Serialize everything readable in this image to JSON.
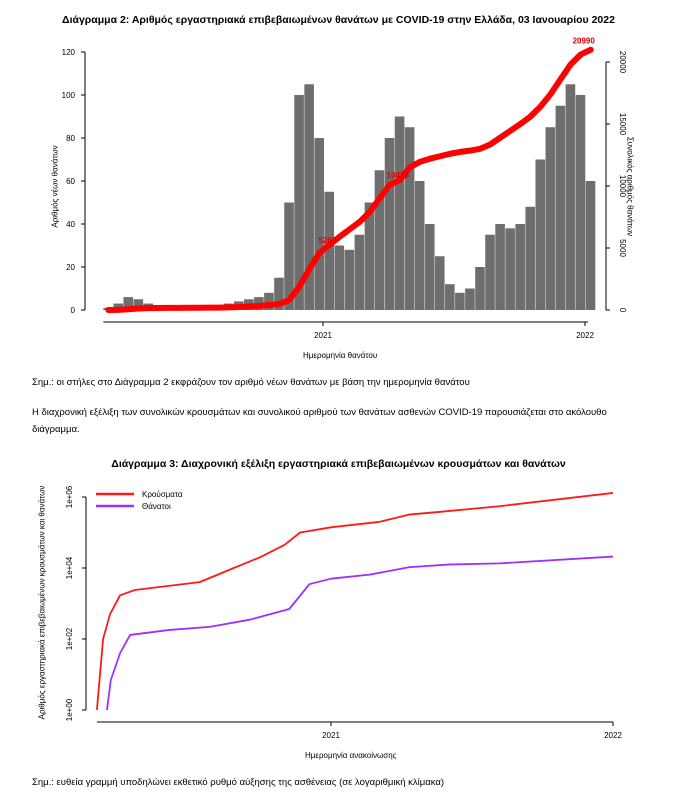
{
  "chart_data": [
    {
      "type": "bar",
      "title": "Διάγραμμα 2: Αριθμός εργαστηριακά επιβεβαιωμένων θανάτων με COVID-19 στην Ελλάδα, 03 Ιανουαρίου 2022",
      "xlabel": "Ημερομηνία θανάτου",
      "ylabel": "Αριθμός νέων θανάτων",
      "ylabel_right": "Συνολικός αριθμός θανάτων",
      "x_tick_labels": [
        "2021",
        "2022"
      ],
      "y_ticks": [
        0,
        20,
        40,
        60,
        80,
        100,
        120
      ],
      "y_ticks_right": [
        0,
        5000,
        10000,
        15000,
        20000
      ],
      "ylim": [
        0,
        125
      ],
      "ylim_right": [
        0,
        20800
      ],
      "bar_color": "#6e6e6e",
      "line_color": "#ff0000",
      "x": [
        "2020-03-01",
        "2020-03-15",
        "2020-03-29",
        "2020-04-12",
        "2020-04-26",
        "2020-05-10",
        "2020-05-24",
        "2020-06-07",
        "2020-06-21",
        "2020-07-05",
        "2020-07-19",
        "2020-08-02",
        "2020-08-16",
        "2020-08-30",
        "2020-09-13",
        "2020-09-27",
        "2020-10-11",
        "2020-10-25",
        "2020-11-08",
        "2020-11-22",
        "2020-12-06",
        "2020-12-20",
        "2021-01-03",
        "2021-01-17",
        "2021-01-31",
        "2021-02-14",
        "2021-02-28",
        "2021-03-14",
        "2021-03-28",
        "2021-04-11",
        "2021-04-25",
        "2021-05-09",
        "2021-05-23",
        "2021-06-06",
        "2021-06-20",
        "2021-07-04",
        "2021-07-18",
        "2021-08-01",
        "2021-08-15",
        "2021-08-29",
        "2021-09-12",
        "2021-09-26",
        "2021-10-10",
        "2021-10-24",
        "2021-11-07",
        "2021-11-21",
        "2021-12-05",
        "2021-12-19",
        "2022-01-02"
      ],
      "series": [
        {
          "type": "bar",
          "axis": "left",
          "values": [
            1,
            3,
            6,
            5,
            3,
            2,
            1,
            1,
            1,
            1,
            1,
            2,
            3,
            4,
            5,
            6,
            8,
            15,
            50,
            100,
            105,
            80,
            55,
            30,
            28,
            35,
            50,
            65,
            80,
            90,
            85,
            60,
            40,
            25,
            12,
            8,
            10,
            20,
            35,
            40,
            38,
            40,
            48,
            70,
            85,
            95,
            105,
            100,
            60
          ]
        },
        {
          "type": "line",
          "axis": "right",
          "values": [
            0,
            10,
            60,
            120,
            150,
            165,
            172,
            176,
            180,
            184,
            188,
            195,
            210,
            240,
            280,
            330,
            400,
            480,
            800,
            1900,
            3300,
            4600,
            5260,
            5900,
            6500,
            7100,
            7900,
            9000,
            10100,
            10476,
            11500,
            11950,
            12200,
            12400,
            12600,
            12750,
            12850,
            13000,
            13350,
            13900,
            14450,
            15000,
            15600,
            16400,
            17400,
            18600,
            19800,
            20600,
            20990
          ]
        }
      ],
      "annotations": [
        "5260",
        "10476",
        "20990"
      ]
    },
    {
      "type": "line",
      "title": "Διάγραμμα 3: Διαχρονική εξέλιξη εργαστηριακά επιβεβαιωμένων κρουσμάτων και θανάτων",
      "xlabel": "Ημερομηνία ανακοίνωσης",
      "ylabel": "Αριθμός εργαστηριακά επιβεβαιωμένων κρουσμάτων και θανάτων",
      "y_scale": "log",
      "y_tick_labels": [
        "1e+00",
        "1e+02",
        "1e+04",
        "1e+06"
      ],
      "x_tick_labels": [
        "2021",
        "2022"
      ],
      "legend_position": "top-left",
      "series": [
        {
          "name": "Κρούσματα",
          "color": "#ff1a1a",
          "x": [
            "2020-03-04",
            "2020-03-12",
            "2020-03-21",
            "2020-04-03",
            "2020-04-22",
            "2020-07-15",
            "2020-08-23",
            "2020-10-01",
            "2020-11-02",
            "2020-11-22",
            "2021-01-01",
            "2021-03-05",
            "2021-04-12",
            "2021-05-21",
            "2021-08-07",
            "2022-01-01"
          ],
          "y": [
            1,
            100,
            500,
            1700,
            2400,
            4000,
            9000,
            20000,
            45000,
            100000,
            140000,
            200000,
            320000,
            380000,
            550000,
            1300000
          ]
        },
        {
          "name": "Θάνατοι",
          "color": "#9b30ff",
          "x": [
            "2020-03-17",
            "2020-03-22",
            "2020-04-03",
            "2020-04-16",
            "2020-06-06",
            "2020-07-28",
            "2020-09-18",
            "2020-11-08",
            "2020-12-04",
            "2021-01-01",
            "2021-02-20",
            "2021-04-12",
            "2021-06-01",
            "2021-08-07",
            "2022-01-01"
          ],
          "y": [
            1,
            7,
            40,
            130,
            180,
            220,
            350,
            700,
            3500,
            5000,
            6500,
            10500,
            12500,
            13500,
            21000
          ]
        }
      ]
    }
  ],
  "notes": {
    "note1": "Σημ.: οι στήλες στο Διάγραμμα 2 εκφράζουν τον αριθμό νέων θανάτων με βάση την ημερομηνία θανάτου",
    "paragraph": "Η διαχρονική εξέλιξη των συνολικών κρουσμάτων και συνολικού αριθμού των θανάτων ασθενών COVID-19 παρουσιάζεται στο ακόλουθο διάγραμμα.",
    "note2": "Σημ.: ευθεία γραμμή υποδηλώνει εκθετικό ρυθμό αύξησης της ασθένειας (σε λογαριθμική κλίμακα)"
  }
}
